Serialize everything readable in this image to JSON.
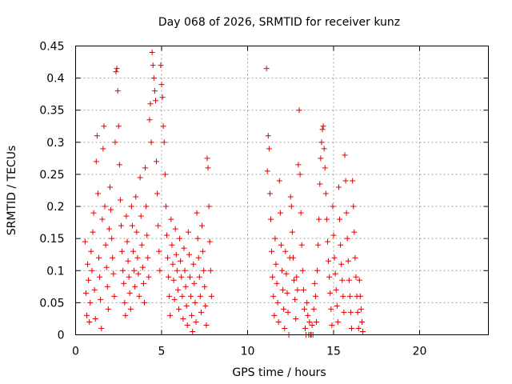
{
  "chart_data": {
    "type": "scatter",
    "title": "Day 068 of 2026, SRMTID for receiver kunz",
    "xlabel": "GPS time / hours",
    "ylabel": "SRMTID / TECUs",
    "xlim": [
      0,
      24
    ],
    "ylim": [
      0,
      0.45
    ],
    "xticks": [
      0,
      5,
      10,
      15,
      20
    ],
    "xtick_labels": [
      "0",
      "5",
      "10",
      "15",
      "20"
    ],
    "yticks": [
      0,
      0.05,
      0.1,
      0.15,
      0.2,
      0.25,
      0.3,
      0.35,
      0.4,
      0.45
    ],
    "ytick_labels": [
      "0",
      "0.05",
      "0.1",
      "0.15",
      "0.2",
      "0.25",
      "0.3",
      "0.35",
      "0.4",
      "0.45"
    ],
    "grid": true,
    "marker": "+",
    "color": "#e00000",
    "series": [
      {
        "name": "SRMTID",
        "points": [
          [
            0.55,
            0.145
          ],
          [
            0.6,
            0.065
          ],
          [
            0.65,
            0.03
          ],
          [
            0.7,
            0.11
          ],
          [
            0.75,
            0.085
          ],
          [
            0.8,
            0.02
          ],
          [
            0.85,
            0.05
          ],
          [
            0.9,
            0.13
          ],
          [
            0.95,
            0.1
          ],
          [
            1.0,
            0.16
          ],
          [
            1.05,
            0.19
          ],
          [
            1.1,
            0.07
          ],
          [
            1.15,
            0.025
          ],
          [
            1.2,
            0.27
          ],
          [
            1.25,
            0.31
          ],
          [
            1.3,
            0.22
          ],
          [
            1.35,
            0.12
          ],
          [
            1.4,
            0.09
          ],
          [
            1.45,
            0.055
          ],
          [
            1.5,
            0.01
          ],
          [
            1.55,
            0.18
          ],
          [
            1.6,
            0.29
          ],
          [
            1.65,
            0.325
          ],
          [
            1.7,
            0.2
          ],
          [
            1.75,
            0.14
          ],
          [
            1.8,
            0.105
          ],
          [
            1.85,
            0.075
          ],
          [
            1.9,
            0.04
          ],
          [
            1.95,
            0.165
          ],
          [
            2.0,
            0.23
          ],
          [
            2.05,
            0.195
          ],
          [
            2.1,
            0.15
          ],
          [
            2.15,
            0.12
          ],
          [
            2.2,
            0.095
          ],
          [
            2.25,
            0.06
          ],
          [
            2.3,
            0.3
          ],
          [
            2.35,
            0.41
          ],
          [
            2.4,
            0.415
          ],
          [
            2.45,
            0.38
          ],
          [
            2.5,
            0.325
          ],
          [
            2.55,
            0.265
          ],
          [
            2.6,
            0.21
          ],
          [
            2.65,
            0.17
          ],
          [
            2.7,
            0.13
          ],
          [
            2.75,
            0.1
          ],
          [
            2.8,
            0.08
          ],
          [
            2.85,
            0.05
          ],
          [
            2.9,
            0.03
          ],
          [
            2.95,
            0.185
          ],
          [
            3.0,
            0.145
          ],
          [
            3.05,
            0.115
          ],
          [
            3.1,
            0.09
          ],
          [
            3.15,
            0.065
          ],
          [
            3.2,
            0.04
          ],
          [
            3.25,
            0.2
          ],
          [
            3.3,
            0.17
          ],
          [
            3.35,
            0.13
          ],
          [
            3.4,
            0.1
          ],
          [
            3.45,
            0.075
          ],
          [
            3.5,
            0.215
          ],
          [
            3.55,
            0.16
          ],
          [
            3.6,
            0.12
          ],
          [
            3.65,
            0.095
          ],
          [
            3.7,
            0.06
          ],
          [
            3.75,
            0.245
          ],
          [
            3.8,
            0.185
          ],
          [
            3.85,
            0.14
          ],
          [
            3.9,
            0.105
          ],
          [
            3.95,
            0.08
          ],
          [
            4.0,
            0.05
          ],
          [
            4.05,
            0.26
          ],
          [
            4.1,
            0.2
          ],
          [
            4.15,
            0.155
          ],
          [
            4.2,
            0.12
          ],
          [
            4.25,
            0.09
          ],
          [
            4.3,
            0.335
          ],
          [
            4.35,
            0.36
          ],
          [
            4.4,
            0.3
          ],
          [
            4.45,
            0.44
          ],
          [
            4.5,
            0.42
          ],
          [
            4.55,
            0.4
          ],
          [
            4.6,
            0.38
          ],
          [
            4.65,
            0.365
          ],
          [
            4.7,
            0.27
          ],
          [
            4.75,
            0.22
          ],
          [
            4.8,
            0.17
          ],
          [
            4.85,
            0.13
          ],
          [
            4.9,
            0.1
          ],
          [
            4.95,
            0.42
          ],
          [
            5.0,
            0.39
          ],
          [
            5.05,
            0.37
          ],
          [
            5.1,
            0.325
          ],
          [
            5.15,
            0.3
          ],
          [
            5.2,
            0.25
          ],
          [
            5.25,
            0.2
          ],
          [
            5.3,
            0.155
          ],
          [
            5.35,
            0.12
          ],
          [
            5.4,
            0.09
          ],
          [
            5.45,
            0.06
          ],
          [
            5.5,
            0.03
          ],
          [
            5.55,
            0.18
          ],
          [
            5.6,
            0.14
          ],
          [
            5.65,
            0.11
          ],
          [
            5.7,
            0.085
          ],
          [
            5.75,
            0.055
          ],
          [
            5.8,
            0.165
          ],
          [
            5.85,
            0.125
          ],
          [
            5.9,
            0.1
          ],
          [
            5.95,
            0.07
          ],
          [
            6.0,
            0.04
          ],
          [
            6.05,
            0.15
          ],
          [
            6.1,
            0.115
          ],
          [
            6.15,
            0.09
          ],
          [
            6.2,
            0.06
          ],
          [
            6.25,
            0.025
          ],
          [
            6.3,
            0.135
          ],
          [
            6.35,
            0.1
          ],
          [
            6.4,
            0.075
          ],
          [
            6.45,
            0.045
          ],
          [
            6.5,
            0.015
          ],
          [
            6.55,
            0.16
          ],
          [
            6.6,
            0.125
          ],
          [
            6.65,
            0.09
          ],
          [
            6.7,
            0.06
          ],
          [
            6.75,
            0.03
          ],
          [
            6.8,
            0.005
          ],
          [
            6.85,
            0.11
          ],
          [
            6.9,
            0.08
          ],
          [
            6.95,
            0.05
          ],
          [
            7.0,
            0.02
          ],
          [
            7.05,
            0.19
          ],
          [
            7.1,
            0.15
          ],
          [
            7.15,
            0.12
          ],
          [
            7.2,
            0.09
          ],
          [
            7.25,
            0.06
          ],
          [
            7.3,
            0.035
          ],
          [
            7.35,
            0.17
          ],
          [
            7.4,
            0.13
          ],
          [
            7.45,
            0.1
          ],
          [
            7.5,
            0.075
          ],
          [
            7.55,
            0.045
          ],
          [
            7.6,
            0.015
          ],
          [
            7.65,
            0.275
          ],
          [
            7.7,
            0.26
          ],
          [
            7.75,
            0.2
          ],
          [
            7.8,
            0.145
          ],
          [
            7.85,
            0.1
          ],
          [
            7.9,
            0.06
          ],
          [
            11.1,
            0.415
          ],
          [
            11.15,
            0.255
          ],
          [
            11.2,
            0.31
          ],
          [
            11.25,
            0.29
          ],
          [
            11.3,
            0.22
          ],
          [
            11.35,
            0.18
          ],
          [
            11.4,
            0.13
          ],
          [
            11.45,
            0.09
          ],
          [
            11.5,
            0.06
          ],
          [
            11.55,
            0.03
          ],
          [
            11.6,
            0.15
          ],
          [
            11.65,
            0.11
          ],
          [
            11.7,
            0.08
          ],
          [
            11.75,
            0.05
          ],
          [
            11.8,
            0.02
          ],
          [
            11.85,
            0.24
          ],
          [
            11.9,
            0.19
          ],
          [
            11.95,
            0.14
          ],
          [
            12.0,
            0.1
          ],
          [
            12.05,
            0.07
          ],
          [
            12.1,
            0.04
          ],
          [
            12.15,
            0.01
          ],
          [
            12.2,
            0.13
          ],
          [
            12.25,
            0.095
          ],
          [
            12.3,
            0.065
          ],
          [
            12.35,
            0.035
          ],
          [
            12.4,
            0.0
          ],
          [
            12.45,
            0.12
          ],
          [
            12.5,
            0.215
          ],
          [
            12.55,
            0.2
          ],
          [
            12.6,
            0.16
          ],
          [
            12.65,
            0.12
          ],
          [
            12.7,
            0.085
          ],
          [
            12.75,
            0.055
          ],
          [
            12.8,
            0.025
          ],
          [
            12.85,
            0.09
          ],
          [
            12.9,
            0.07
          ],
          [
            12.95,
            0.265
          ],
          [
            13.0,
            0.35
          ],
          [
            13.05,
            0.25
          ],
          [
            13.1,
            0.19
          ],
          [
            13.15,
            0.14
          ],
          [
            13.2,
            0.1
          ],
          [
            13.25,
            0.07
          ],
          [
            13.3,
            0.04
          ],
          [
            13.35,
            0.01
          ],
          [
            13.4,
            0.0
          ],
          [
            13.45,
            0.05
          ],
          [
            13.5,
            0.03
          ],
          [
            13.55,
            0.0
          ],
          [
            13.6,
            0.02
          ],
          [
            13.65,
            0.0
          ],
          [
            13.7,
            0.0
          ],
          [
            13.75,
            0.015
          ],
          [
            13.8,
            0.0
          ],
          [
            13.85,
            0.04
          ],
          [
            13.9,
            0.08
          ],
          [
            13.95,
            0.06
          ],
          [
            14.0,
            0.02
          ],
          [
            14.05,
            0.1
          ],
          [
            14.1,
            0.14
          ],
          [
            14.15,
            0.18
          ],
          [
            14.2,
            0.235
          ],
          [
            14.25,
            0.275
          ],
          [
            14.3,
            0.3
          ],
          [
            14.35,
            0.32
          ],
          [
            14.4,
            0.325
          ],
          [
            14.45,
            0.29
          ],
          [
            14.5,
            0.26
          ],
          [
            14.55,
            0.22
          ],
          [
            14.6,
            0.18
          ],
          [
            14.65,
            0.145
          ],
          [
            14.7,
            0.115
          ],
          [
            14.75,
            0.09
          ],
          [
            14.8,
            0.065
          ],
          [
            14.85,
            0.04
          ],
          [
            14.9,
            0.015
          ],
          [
            14.95,
            0.2
          ],
          [
            15.0,
            0.155
          ],
          [
            15.05,
            0.12
          ],
          [
            15.1,
            0.095
          ],
          [
            15.15,
            0.07
          ],
          [
            15.2,
            0.045
          ],
          [
            15.25,
            0.02
          ],
          [
            15.3,
            0.23
          ],
          [
            15.35,
            0.18
          ],
          [
            15.4,
            0.14
          ],
          [
            15.45,
            0.11
          ],
          [
            15.5,
            0.085
          ],
          [
            15.55,
            0.06
          ],
          [
            15.6,
            0.035
          ],
          [
            15.65,
            0.28
          ],
          [
            15.7,
            0.24
          ],
          [
            15.75,
            0.19
          ],
          [
            15.8,
            0.15
          ],
          [
            15.85,
            0.115
          ],
          [
            15.9,
            0.085
          ],
          [
            15.95,
            0.06
          ],
          [
            16.0,
            0.035
          ],
          [
            16.05,
            0.01
          ],
          [
            16.1,
            0.24
          ],
          [
            16.15,
            0.2
          ],
          [
            16.2,
            0.16
          ],
          [
            16.25,
            0.12
          ],
          [
            16.3,
            0.09
          ],
          [
            16.35,
            0.06
          ],
          [
            16.4,
            0.035
          ],
          [
            16.45,
            0.01
          ],
          [
            16.5,
            0.085
          ],
          [
            16.55,
            0.06
          ],
          [
            16.6,
            0.04
          ],
          [
            16.65,
            0.02
          ],
          [
            16.7,
            0.005
          ]
        ]
      }
    ]
  }
}
